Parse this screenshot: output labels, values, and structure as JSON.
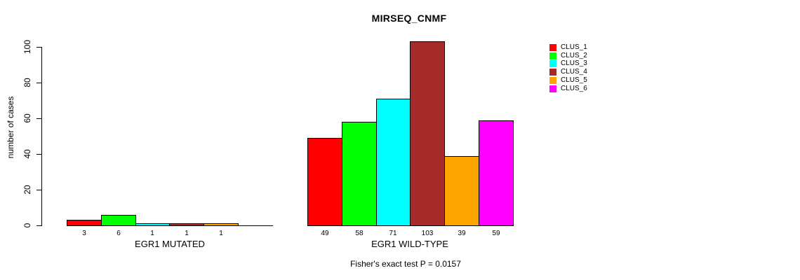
{
  "chart_data": {
    "type": "bar",
    "title": "MIRSEQ_CNMF",
    "ylabel": "number of cases",
    "ylim": [
      0,
      100
    ],
    "yticks": [
      0,
      20,
      40,
      60,
      80,
      100
    ],
    "grid": false,
    "legend_position": "right",
    "series_names": [
      "CLUS_1",
      "CLUS_2",
      "CLUS_3",
      "CLUS_4",
      "CLUS_5",
      "CLUS_6"
    ],
    "series_colors": [
      "#ff0000",
      "#00ff00",
      "#00ffff",
      "#a52a2a",
      "#ffa500",
      "#ff00ff"
    ],
    "groups": [
      {
        "label": "EGR1 MUTATED",
        "values": [
          3,
          6,
          1,
          1,
          1,
          0
        ],
        "value_labels": [
          "3",
          "6",
          "1",
          "1",
          "1",
          ""
        ]
      },
      {
        "label": "EGR1 WILD-TYPE",
        "values": [
          49,
          58,
          71,
          103,
          39,
          59
        ],
        "value_labels": [
          "49",
          "58",
          "71",
          "103",
          "39",
          "59"
        ]
      }
    ],
    "footnote": "Fisher's exact test P = 0.0157"
  }
}
